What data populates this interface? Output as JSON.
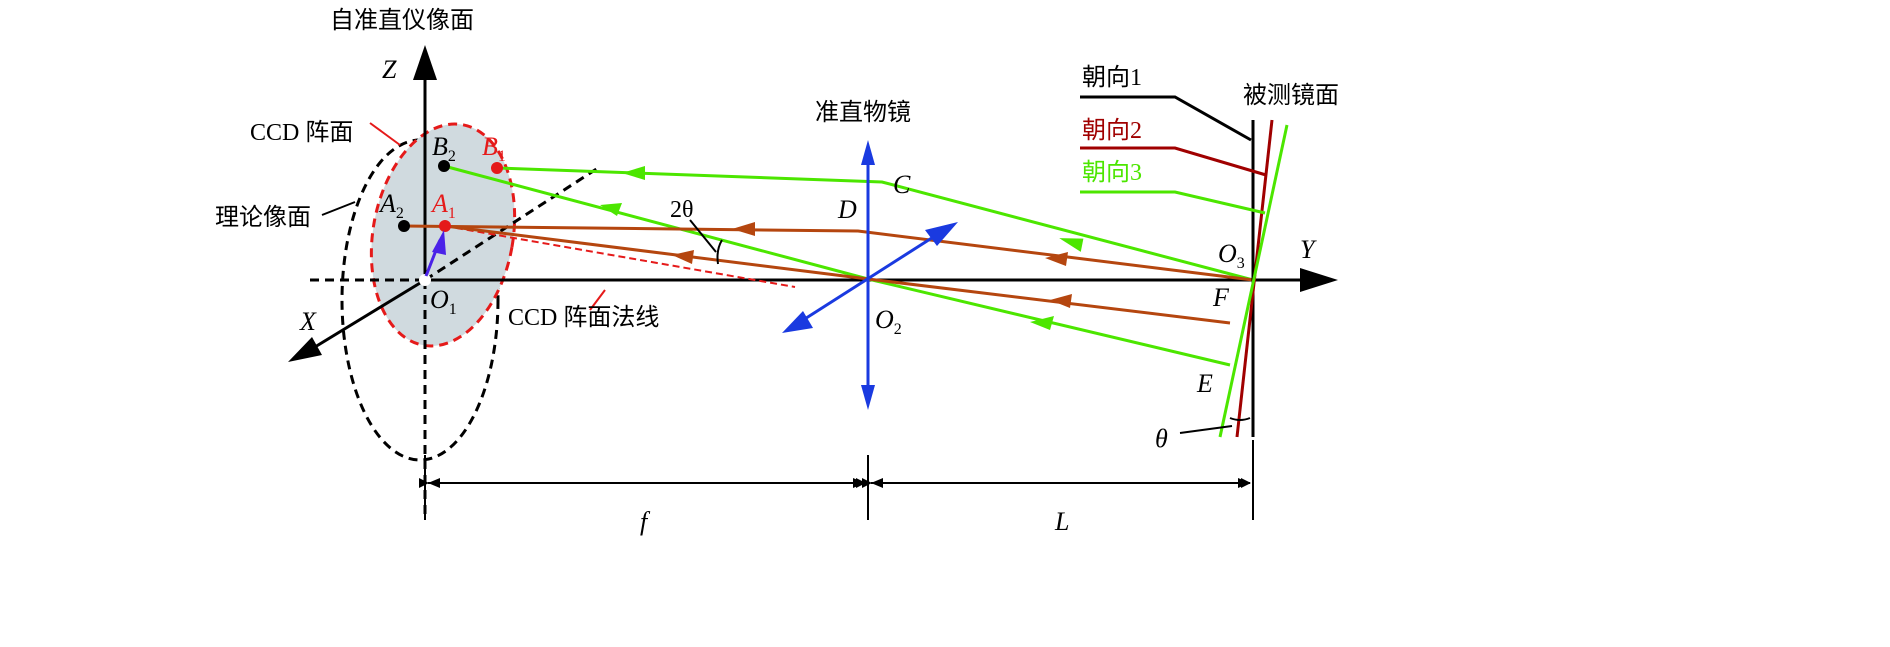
{
  "labels": {
    "top_title": "自准直仪像面",
    "z_axis": "Z",
    "y_axis": "Y",
    "x_axis": "X",
    "ccd_plane": "CCD 阵面",
    "theory_plane": "理论像面",
    "ccd_normal": "CCD 阵面法线",
    "lens": "准直物镜",
    "mirror": "被测镜面",
    "orient1": "朝向1",
    "orient2": "朝向2",
    "orient3": "朝向3",
    "angle_2theta": "2θ",
    "theta": "θ",
    "C": "C",
    "D": "D",
    "E": "E",
    "F": "F",
    "A": "A",
    "B": "B",
    "O": "O",
    "sub1": "1",
    "sub2": "2",
    "sub3": "3",
    "f": "f",
    "L": "L"
  },
  "colors": {
    "green": "#4ce600",
    "brown": "#b5460f",
    "darkred": "#a00000",
    "red": "#e51a1a",
    "blue": "#1a3ae0",
    "violet": "#4a22e8",
    "ccd_fill": "#d0dadf"
  }
}
